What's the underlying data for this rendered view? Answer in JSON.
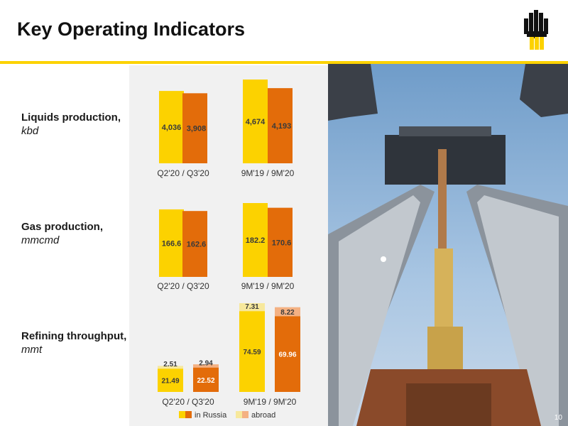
{
  "header": {
    "title": "Key Operating Indicators"
  },
  "colors": {
    "yellow": "#fcd200",
    "orange": "#e36c0a",
    "light_yellow": "#f7e89c",
    "light_orange": "#f4b183",
    "accent_line": "#fcd200"
  },
  "rows": [
    {
      "name": "Liquids production,",
      "unit": "kbd"
    },
    {
      "name": "Gas production,",
      "unit": "mmcmd"
    },
    {
      "name": "Refining throughput,",
      "unit": "mmt"
    }
  ],
  "chart_data": [
    {
      "type": "bar",
      "categories": [
        "Q2'20 / Q3'20",
        "9M'19 / 9M'20"
      ],
      "series": [
        {
          "values": [
            4036,
            4674
          ],
          "labels": [
            "4,036",
            "4,674"
          ]
        },
        {
          "values": [
            3908,
            4193
          ],
          "labels": [
            "3,908",
            "4,193"
          ]
        }
      ],
      "ylim": [
        0,
        4674
      ]
    },
    {
      "type": "bar",
      "categories": [
        "Q2'20 / Q3'20",
        "9M'19 / 9M'20"
      ],
      "series": [
        {
          "values": [
            166.6,
            182.2
          ],
          "labels": [
            "166.6",
            "182.2"
          ]
        },
        {
          "values": [
            162.6,
            170.6
          ],
          "labels": [
            "162.6",
            "170.6"
          ]
        }
      ],
      "ylim": [
        0,
        182.2
      ]
    },
    {
      "type": "bar",
      "stacked": true,
      "categories": [
        "Q2'20 / Q3'20",
        "9M'19 / 9M'20"
      ],
      "legend": [
        "in Russia",
        "abroad"
      ],
      "bars": [
        {
          "in_russia": 21.49,
          "abroad": 2.51,
          "labels": [
            "21.49",
            "2.51"
          ]
        },
        {
          "in_russia": 22.52,
          "abroad": 2.94,
          "labels": [
            "22.52",
            "2.94"
          ]
        },
        {
          "in_russia": 74.59,
          "abroad": 7.31,
          "labels": [
            "74.59",
            "7.31"
          ]
        },
        {
          "in_russia": 69.96,
          "abroad": 8.22,
          "labels": [
            "69.96",
            "8.22"
          ]
        }
      ],
      "ylim": [
        0,
        81.9
      ]
    }
  ],
  "footer": {
    "page_number": "10"
  }
}
